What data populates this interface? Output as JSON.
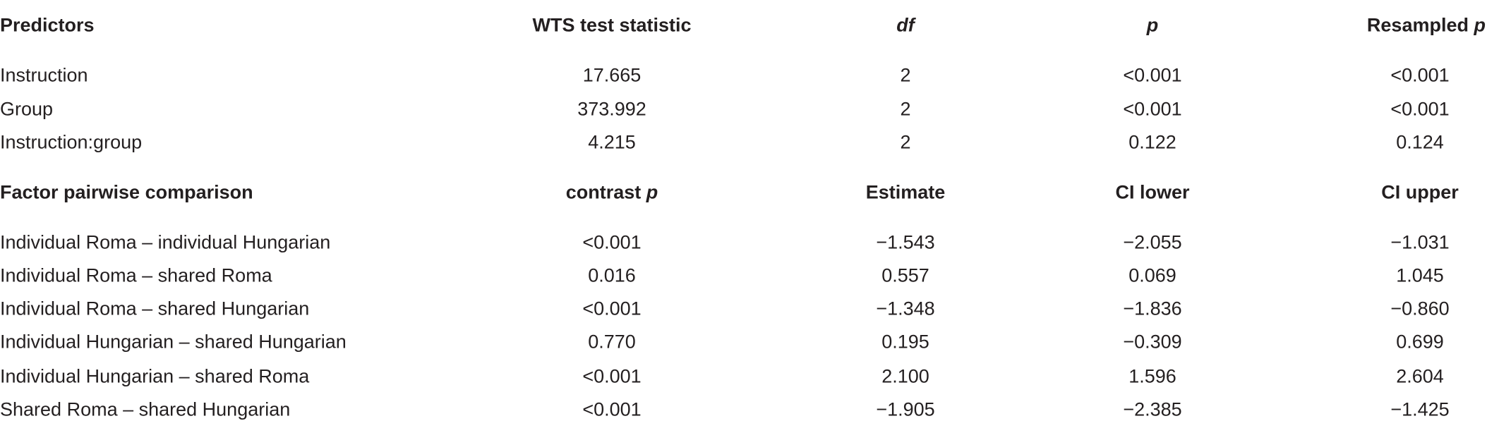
{
  "table": {
    "sections": [
      {
        "header": [
          {
            "text": "Predictors"
          },
          {
            "text": "WTS test statistic"
          },
          {
            "em": "df"
          },
          {
            "em": "p"
          },
          {
            "text": "Resampled",
            "em": "p"
          }
        ],
        "rows": [
          [
            "Instruction",
            "17.665",
            "2",
            "<0.001",
            "<0.001"
          ],
          [
            "Group",
            "373.992",
            "2",
            "<0.001",
            "<0.001"
          ],
          [
            "Instruction:group",
            "4.215",
            "2",
            "0.122",
            "0.124"
          ]
        ]
      },
      {
        "header": [
          {
            "text": "Factor pairwise comparison"
          },
          {
            "text": "contrast",
            "em": "p"
          },
          {
            "text": "Estimate"
          },
          {
            "text": "CI lower"
          },
          {
            "text": "CI upper"
          }
        ],
        "rows": [
          [
            "Individual Roma – individual Hungarian",
            "<0.001",
            "−1.543",
            "−2.055",
            "−1.031"
          ],
          [
            "Individual Roma – shared Roma",
            "0.016",
            "0.557",
            "0.069",
            "1.045"
          ],
          [
            "Individual Roma – shared Hungarian",
            "<0.001",
            "−1.348",
            "−1.836",
            "−0.860"
          ],
          [
            "Individual Hungarian – shared Hungarian",
            "0.770",
            "0.195",
            "−0.309",
            "0.699"
          ],
          [
            "Individual Hungarian – shared Roma",
            "<0.001",
            "2.100",
            "1.596",
            "2.604"
          ],
          [
            "Shared Roma – shared Hungarian",
            "<0.001",
            "−1.905",
            "−2.385",
            "−1.425"
          ]
        ]
      }
    ]
  }
}
